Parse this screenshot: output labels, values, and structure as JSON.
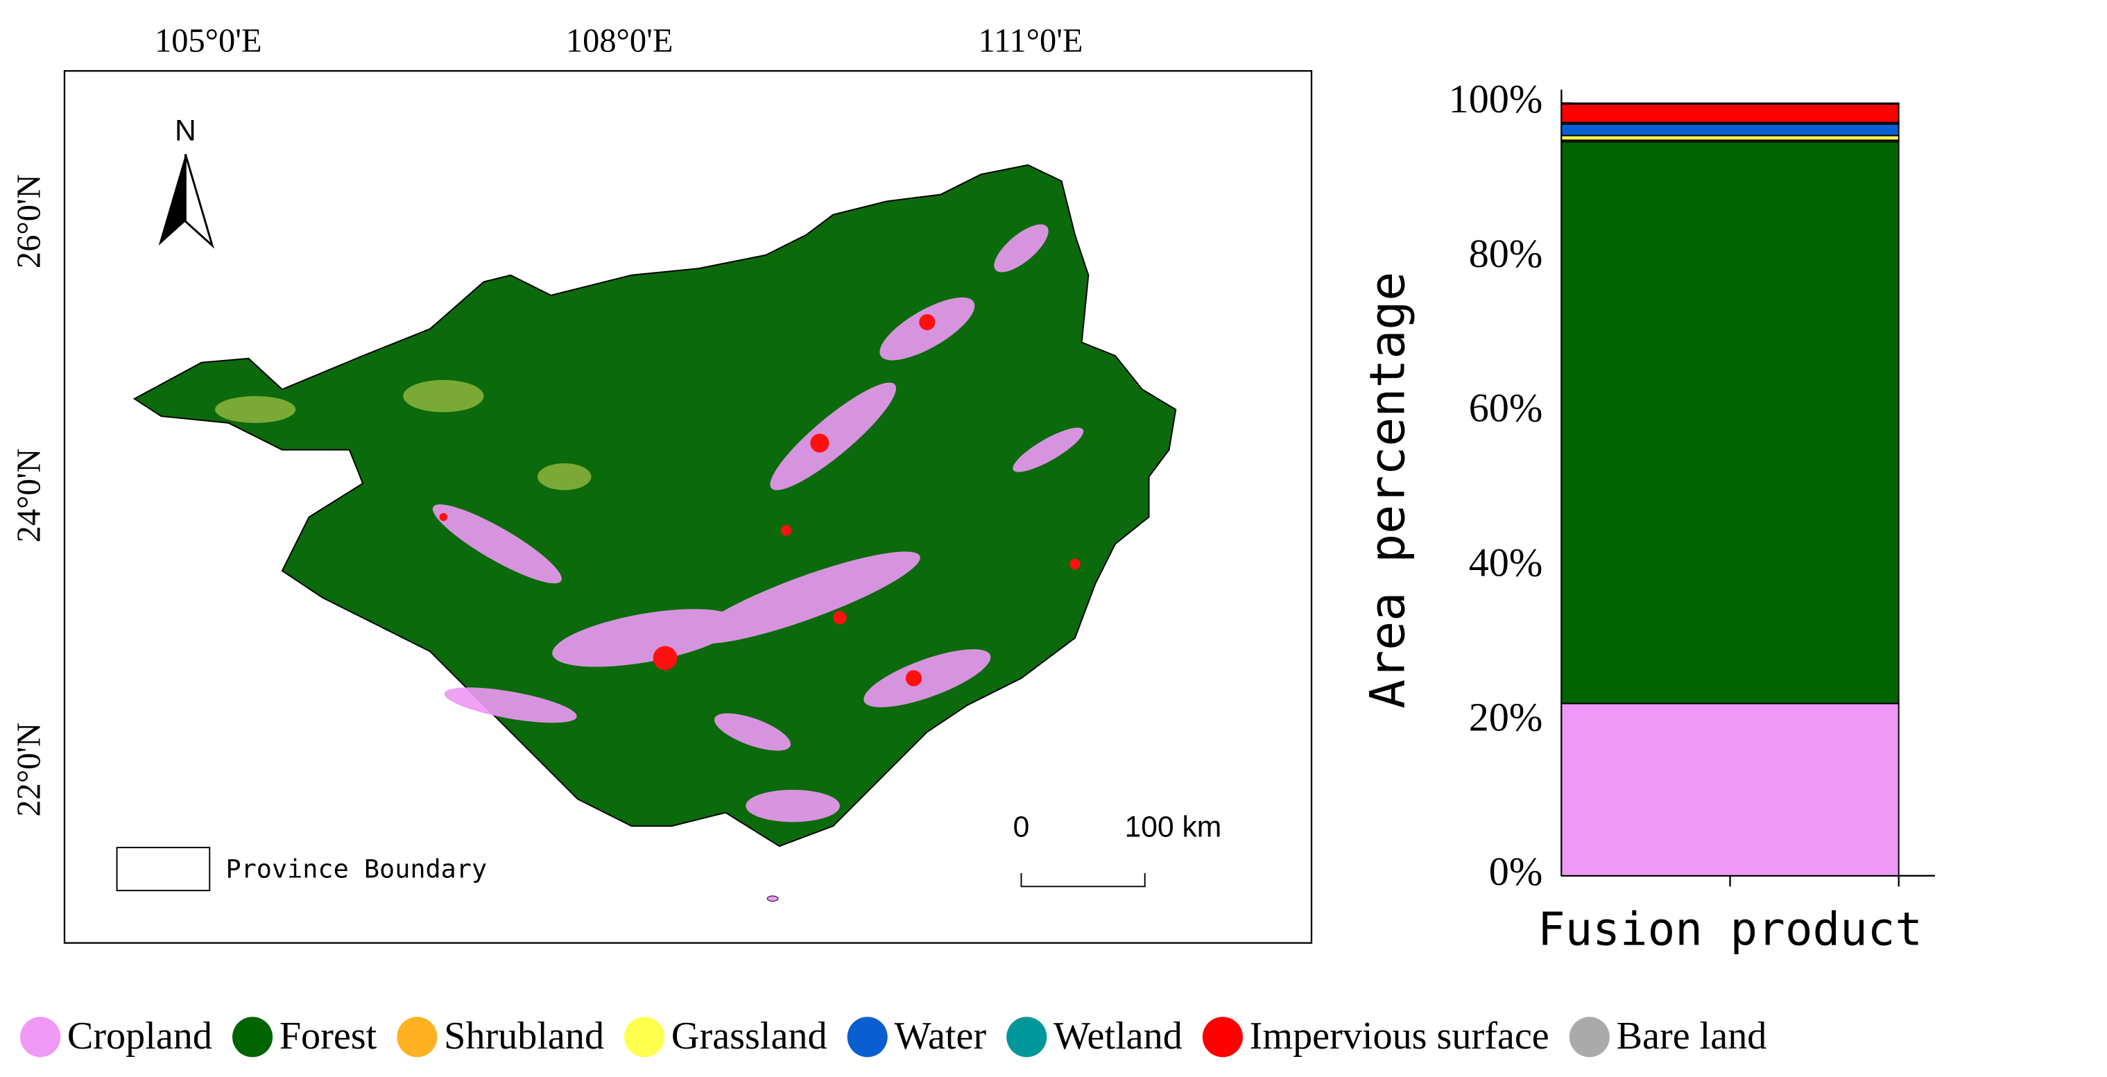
{
  "map": {
    "lon_labels": [
      "105°0'E",
      "108°0'E",
      "111°0'E"
    ],
    "lat_labels": [
      "26°0'N",
      "24°0'N",
      "22°0'N"
    ],
    "north": "N",
    "scale_labels": [
      "0",
      "100 km"
    ],
    "legend_label": "Province Boundary"
  },
  "chart_data": {
    "type": "stacked_bar",
    "y_label": "Area percentage",
    "categories": [
      "Fusion product"
    ],
    "series": [
      {
        "name": "Cropland",
        "color": "#ee99f5",
        "values": [
          22.3
        ]
      },
      {
        "name": "Forest",
        "color": "#006400",
        "values": [
          72.7
        ]
      },
      {
        "name": "Shrubland",
        "color": "#ffb121",
        "values": [
          0.2
        ]
      },
      {
        "name": "Grassland",
        "color": "#ffff4d",
        "values": [
          0.6
        ]
      },
      {
        "name": "Water",
        "color": "#0a5fd0",
        "values": [
          1.5
        ]
      },
      {
        "name": "Wetland",
        "color": "#00979a",
        "values": [
          0.2
        ]
      },
      {
        "name": "Impervious surface",
        "color": "#ff0000",
        "values": [
          2.4
        ]
      },
      {
        "name": "Bare land",
        "color": "#aaaaaa",
        "values": [
          0.1
        ]
      }
    ],
    "ylim": [
      0,
      100
    ],
    "yticks": [
      {
        "value": 0,
        "label": "0%"
      },
      {
        "value": 20,
        "label": "20%"
      },
      {
        "value": 40,
        "label": "40%"
      },
      {
        "value": 60,
        "label": "60%"
      },
      {
        "value": 80,
        "label": "80%"
      },
      {
        "value": 100,
        "label": "100%"
      }
    ]
  }
}
